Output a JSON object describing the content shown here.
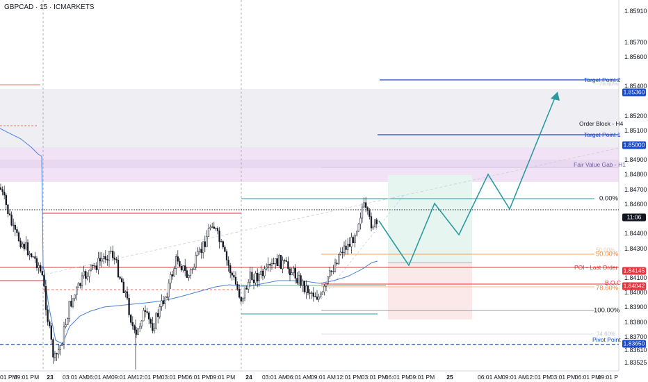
{
  "title": "GBPCAD · 15 · ICMARKETS",
  "colors": {
    "candle": "#131722",
    "ma": "#4a7fd6",
    "blue_level": "#1848cc",
    "red_level": "#e8323c",
    "teal": "#2a9aa0",
    "fvg": "#f1e4f4",
    "ob": "#eeeef2"
  },
  "price_axis": {
    "ticks": [
      "1.85910",
      "1.85700",
      "1.85600",
      "1.85400",
      "1.85200",
      "1.85100",
      "1.84900",
      "1.84800",
      "1.84700",
      "1.84600",
      "1.84400",
      "1.84300",
      "1.84100",
      "1.84000",
      "1.83900",
      "1.83800",
      "1.83700",
      "1.83610",
      "1.83525"
    ],
    "tick_values": [
      1.8591,
      1.857,
      1.856,
      1.854,
      1.852,
      1.851,
      1.849,
      1.848,
      1.847,
      1.846,
      1.844,
      1.843,
      1.841,
      1.84,
      1.839,
      1.838,
      1.837,
      1.8361,
      1.83525
    ],
    "tags": [
      {
        "text": "1.85360",
        "value": 1.8536,
        "color": "#1848cc"
      },
      {
        "text": "1.85000",
        "value": 1.85,
        "color": "#1848cc"
      },
      {
        "text": "11:06",
        "value": 1.8451,
        "color": "#131722"
      },
      {
        "text": "1.84145",
        "value": 1.84145,
        "color": "#e8323c"
      },
      {
        "text": "1.84042",
        "value": 1.84042,
        "color": "#e8323c"
      },
      {
        "text": "1.83650",
        "value": 1.8365,
        "color": "#1848cc"
      }
    ]
  },
  "time_axis": [
    "01 PM",
    "09:01 PM",
    "23",
    "03:01 AM",
    "06:01 AM",
    "09:01 AM",
    "12:01 PM",
    "03:01 PM",
    "06:01 PM",
    "09:01 PM",
    "24",
    "03:01 AM",
    "06:01 AM",
    "09:01 AM",
    "12:01 PM",
    "03:01 PM",
    "06:01 PM",
    "09:01 PM",
    "25",
    "06:01 AM",
    "09:01 AM",
    "12:01 PM",
    "03:01 PM",
    "06:01 PM",
    "09:01 P"
  ],
  "annotations": {
    "target2": "Target Point 2",
    "target1": "Target Point 1",
    "order_block": "Order Block - H4",
    "fvg": "Fair Value Gab - H1",
    "poi": "POI - Last Order",
    "pivot": "Pivot Point",
    "boc": "B.O.C"
  },
  "fib": {
    "f0": "0.00%",
    "f50": "50.00%",
    "f100": "100.00%",
    "f78": "78.60%",
    "f_ghost_top": "78.60%",
    "f_ghost_a": "50.00%",
    "f_ghost_b": "74.60%"
  }
}
